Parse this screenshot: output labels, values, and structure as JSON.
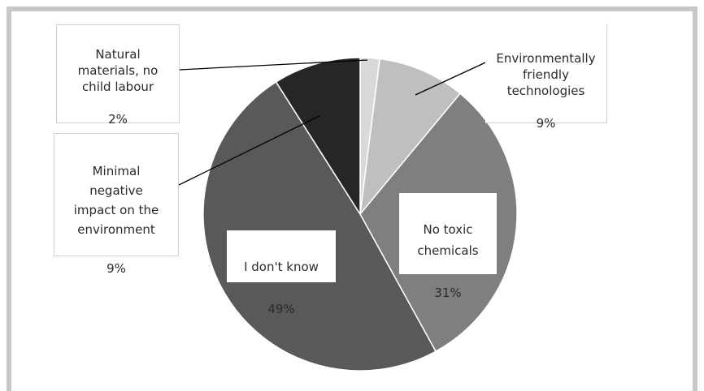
{
  "chart_data": {
    "type": "pie",
    "title": "",
    "slices": [
      {
        "label": "Natural materials, no child labour",
        "value": 2,
        "value_label": "2%",
        "color": "#d9d9d9"
      },
      {
        "label": "Environmentally friendly technologies",
        "value": 9,
        "value_label": "9%",
        "color": "#bfbfbf"
      },
      {
        "label": "No toxic chemicals",
        "value": 31,
        "value_label": "31%",
        "color": "#7f7f7f"
      },
      {
        "label": "I don't know",
        "value": 49,
        "value_label": "49%",
        "color": "#595959"
      },
      {
        "label": "Minimal negative impact on the environment",
        "value": 9,
        "value_label": "9%",
        "color": "#262626"
      }
    ],
    "start_angle_deg": 0,
    "direction": "clockwise",
    "legend": "none",
    "data_labels": "outside-with-callouts"
  },
  "labels": {
    "natural": {
      "name": "Natural\nmaterials, no\nchild labour",
      "pct": "2%"
    },
    "env_tech": {
      "name": "Environmentally\nfriendly\ntechnologies",
      "pct": "9%"
    },
    "toxic": {
      "name": "No toxic\nchemicals",
      "pct": "31%"
    },
    "dontknow": {
      "name": "I don't know",
      "pct": "49%"
    },
    "minimal": {
      "name": "Minimal\nnegative\nimpact on the\nenvironment",
      "pct": "9%"
    }
  },
  "colors": {
    "frame": "#c8c8c8",
    "callout_line": "#000000"
  }
}
